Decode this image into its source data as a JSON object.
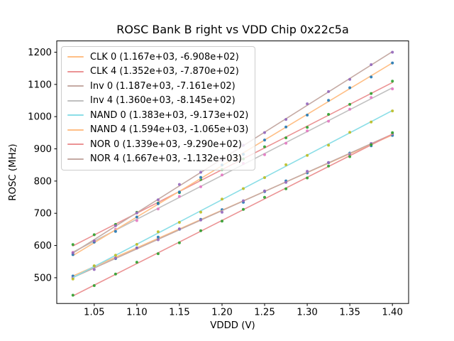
{
  "window": {
    "background": "#ffffff"
  },
  "chart_data": {
    "type": "scatter",
    "title": "ROSC Bank B right vs VDD Chip 0x22c5a",
    "xlabel": "VDDD (V)",
    "ylabel": "ROSC (MHz)",
    "xlim": [
      1.006,
      1.419
    ],
    "ylim": [
      420,
      1235
    ],
    "grid": false,
    "x_ticks": [
      1.05,
      1.1,
      1.15,
      1.2,
      1.25,
      1.3,
      1.35,
      1.4
    ],
    "x_tick_labels": [
      "1.05",
      "1.10",
      "1.15",
      "1.20",
      "1.25",
      "1.30",
      "1.35",
      "1.40"
    ],
    "y_ticks": [
      500,
      600,
      700,
      800,
      900,
      1000,
      1100,
      1200
    ],
    "y_tick_labels": [
      "500",
      "600",
      "700",
      "800",
      "900",
      "1000",
      "1100",
      "1200"
    ],
    "legend_position": "upper-left",
    "x_points": [
      1.025,
      1.05,
      1.075,
      1.1,
      1.125,
      1.15,
      1.175,
      1.2,
      1.225,
      1.25,
      1.275,
      1.3,
      1.325,
      1.35,
      1.375,
      1.4
    ],
    "series": [
      {
        "name": "CLK 0",
        "legend_label": "CLK 0 (1.167e+03, -6.908e+02)",
        "fit_slope": 1167,
        "fit_intercept": -690.8,
        "line_color": "#ffbf86",
        "marker_color": "#1f77b4"
      },
      {
        "name": "CLK 4",
        "legend_label": "CLK 4 (1.352e+03, -7.870e+02)",
        "fit_slope": 1352,
        "fit_intercept": -787.0,
        "line_color": "#eb9394",
        "marker_color": "#2ca02c"
      },
      {
        "name": "Inv 0",
        "legend_label": "Inv 0 (1.187e+03, -7.161e+02)",
        "fit_slope": 1187,
        "fit_intercept": -716.1,
        "line_color": "#c5aaa4",
        "marker_color": "#9467bd"
      },
      {
        "name": "Inv 4",
        "legend_label": "Inv 4 (1.360e+03, -8.145e+02)",
        "fit_slope": 1360,
        "fit_intercept": -814.5,
        "line_color": "#c0c0c0",
        "marker_color": "#e377c2"
      },
      {
        "name": "NAND 0",
        "legend_label": "NAND 0 (1.383e+03, -9.173e+02)",
        "fit_slope": 1383,
        "fit_intercept": -917.3,
        "line_color": "#8bdee7",
        "marker_color": "#bcbd22"
      },
      {
        "name": "NAND 4",
        "legend_label": "NAND 4 (1.594e+03, -1.065e+03)",
        "fit_slope": 1594,
        "fit_intercept": -1065.0,
        "line_color": "#ffbf86",
        "marker_color": "#1f77b4"
      },
      {
        "name": "NOR 0",
        "legend_label": "NOR 0 (1.339e+03, -9.290e+02)",
        "fit_slope": 1339,
        "fit_intercept": -929.0,
        "line_color": "#eb9394",
        "marker_color": "#2ca02c"
      },
      {
        "name": "NOR 4",
        "legend_label": "NOR 4 (1.667e+03, -1.132e+03)",
        "fit_slope": 1667,
        "fit_intercept": -1132.0,
        "line_color": "#c5aaa4",
        "marker_color": "#9467bd"
      }
    ]
  }
}
